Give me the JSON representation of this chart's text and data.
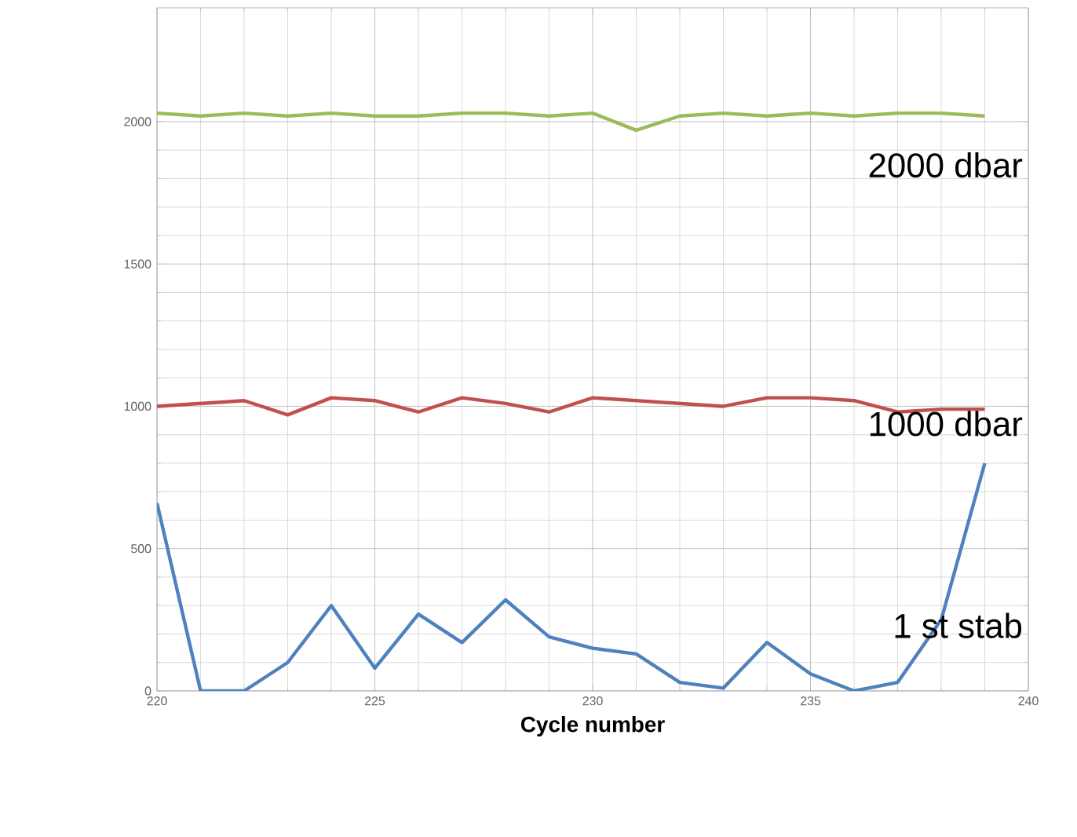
{
  "chart_data": {
    "type": "line",
    "xlabel": "Cycle number",
    "x": [
      220,
      221,
      222,
      223,
      224,
      225,
      226,
      227,
      228,
      229,
      230,
      231,
      232,
      233,
      234,
      235,
      236,
      237,
      238,
      239
    ],
    "series": [
      {
        "name": "2000 dbar",
        "color": "#9bbb59",
        "values": [
          2030,
          2020,
          2030,
          2020,
          2030,
          2020,
          2020,
          2030,
          2030,
          2020,
          2030,
          1970,
          2020,
          2030,
          2020,
          2030,
          2020,
          2030,
          2030,
          2020
        ]
      },
      {
        "name": "1000 dbar",
        "color": "#c0504d",
        "values": [
          1000,
          1010,
          1020,
          970,
          1030,
          1020,
          980,
          1030,
          1010,
          980,
          1030,
          1020,
          1010,
          1000,
          1030,
          1030,
          1020,
          980,
          990,
          990
        ]
      },
      {
        "name": "1 st  stab",
        "color": "#4f81bd",
        "values": [
          660,
          0,
          0,
          100,
          300,
          80,
          270,
          170,
          320,
          190,
          150,
          130,
          30,
          10,
          170,
          60,
          0,
          30,
          250,
          800
        ]
      }
    ],
    "xlim": [
      220,
      240
    ],
    "xticks": [
      220,
      225,
      230,
      235,
      240
    ],
    "ylim": [
      0,
      2400
    ],
    "yticks": [
      0,
      500,
      1000,
      1500,
      2000
    ],
    "grid": true,
    "marker": "none",
    "line_style": "solid"
  }
}
